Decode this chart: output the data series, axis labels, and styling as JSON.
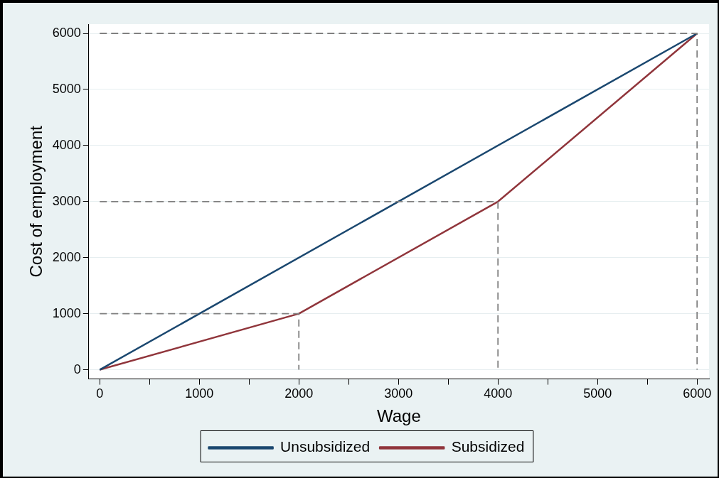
{
  "chart_data": {
    "type": "line",
    "xlabel": "Wage",
    "ylabel": "Cost of employment",
    "xlim": [
      -110,
      6120
    ],
    "ylim": [
      -165,
      6165
    ],
    "xticks": [
      0,
      {
        "value": 500,
        "label": null
      },
      1000,
      {
        "value": 1500,
        "label": null
      },
      2000,
      {
        "value": 2500,
        "label": null
      },
      3000,
      {
        "value": 3500,
        "label": null
      },
      4000,
      {
        "value": 4500,
        "label": null
      },
      5000,
      {
        "value": 5500,
        "label": null
      },
      6000
    ],
    "yticks": [
      0,
      1000,
      2000,
      3000,
      4000,
      5000,
      6000
    ],
    "grid": "y",
    "legend": "bottom",
    "marker": "none",
    "series": [
      {
        "color": "#808080",
        "line_style": "dashed",
        "x": [
          0,
          2000,
          2000
        ],
        "values": [
          1000,
          1000,
          0
        ]
      },
      {
        "color": "#808080",
        "line_style": "dashed",
        "x": [
          0,
          4000,
          4000
        ],
        "values": [
          3000,
          3000,
          0
        ]
      },
      {
        "color": "#808080",
        "line_style": "dashed",
        "x": [
          0,
          6000,
          6000
        ],
        "values": [
          6000,
          6000,
          0
        ]
      },
      {
        "name": "Unsubsidized",
        "color": "#1a476f",
        "line_style": "solid",
        "x": [
          0,
          6000
        ],
        "values": [
          0,
          6000
        ]
      },
      {
        "name": "Subsidized",
        "color": "#90353b",
        "line_style": "solid",
        "x": [
          0,
          2000,
          4000,
          6000
        ],
        "values": [
          0,
          1000,
          3000,
          6000
        ]
      }
    ]
  }
}
